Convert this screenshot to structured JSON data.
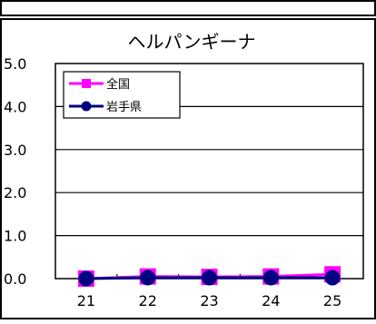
{
  "chart_data": {
    "type": "line",
    "title": "ヘルパンギーナ",
    "xlabel": "",
    "ylabel": "",
    "categories": [
      "21",
      "22",
      "23",
      "24",
      "25"
    ],
    "ylim": [
      0.0,
      5.0
    ],
    "yticks": [
      "0.0",
      "1.0",
      "2.0",
      "3.0",
      "4.0",
      "5.0"
    ],
    "grid": true,
    "legend_position": "top-left",
    "series": [
      {
        "name": "全国",
        "values": [
          0.0,
          0.05,
          0.04,
          0.05,
          0.1
        ],
        "color": "#ff00ff",
        "marker": "square"
      },
      {
        "name": "岩手県",
        "values": [
          0.0,
          0.02,
          0.02,
          0.02,
          0.02
        ],
        "color": "#000080",
        "marker": "circle"
      }
    ]
  }
}
